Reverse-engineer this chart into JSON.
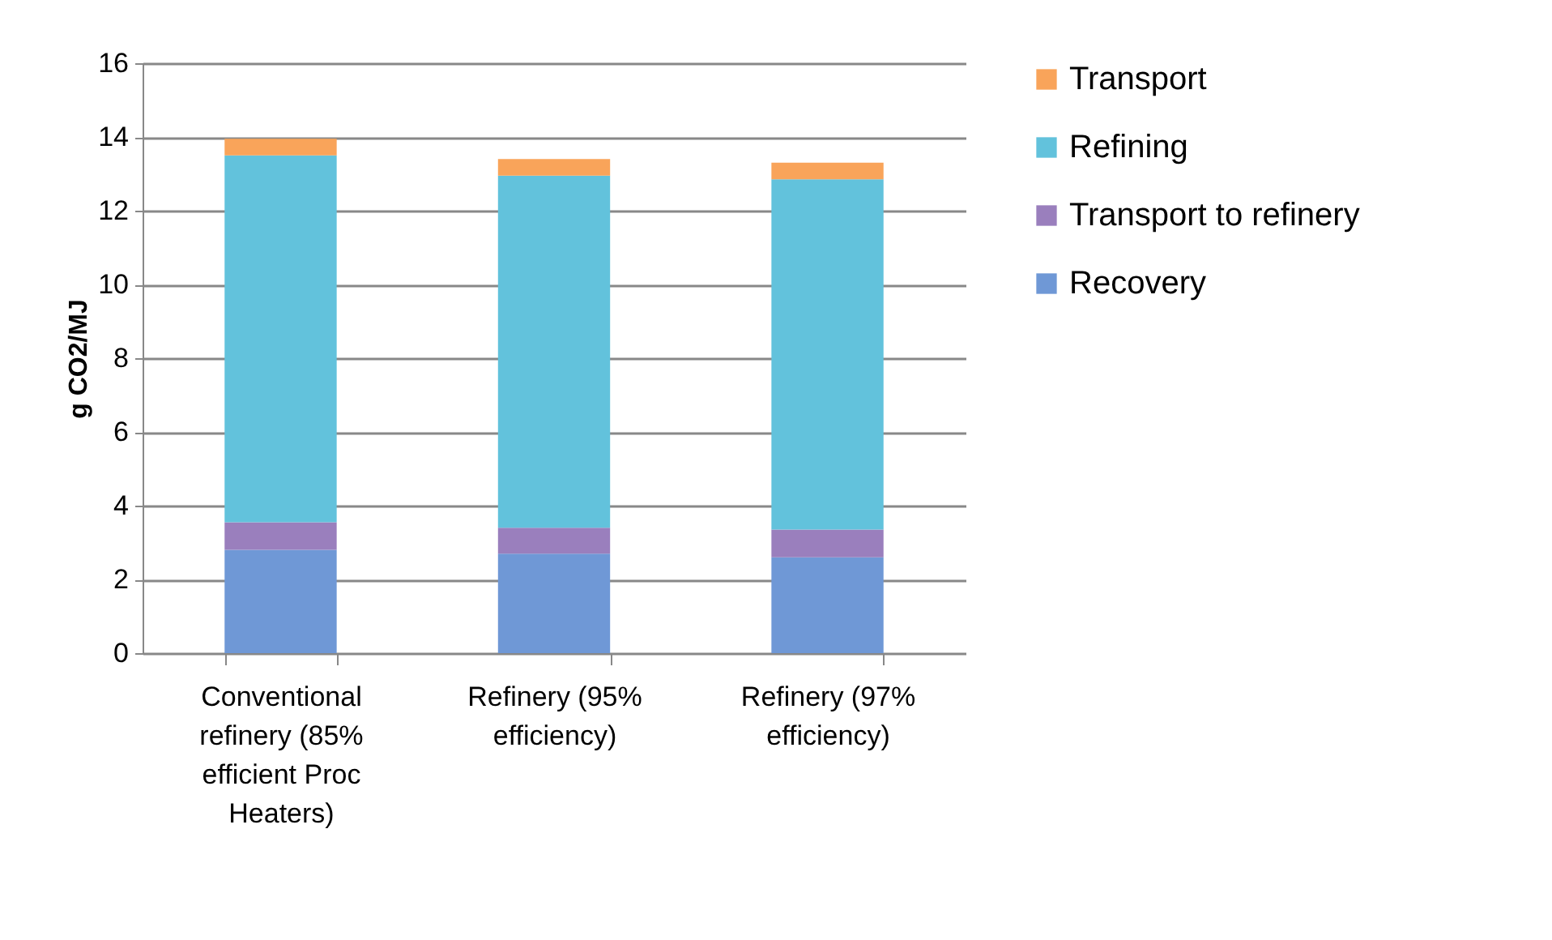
{
  "chart_data": {
    "type": "bar",
    "stacked": true,
    "ylabel": "g CO2/MJ",
    "categories": [
      "Conventional refinery (85% efficient Proc Heaters)",
      "Refinery (95% efficiency)",
      "Refinery (97% efficiency)"
    ],
    "series": [
      {
        "name": "Recovery",
        "color": "#6f98d6",
        "values": [
          2.8,
          2.7,
          2.6
        ]
      },
      {
        "name": "Transport to refinery",
        "color": "#9a7fbd",
        "values": [
          0.75,
          0.7,
          0.75
        ]
      },
      {
        "name": "Refining",
        "color": "#62c2dc",
        "values": [
          9.95,
          9.55,
          9.5
        ]
      },
      {
        "name": "Transport",
        "color": "#f9a45a",
        "values": [
          0.45,
          0.45,
          0.45
        ]
      }
    ],
    "ylim": [
      0,
      16
    ],
    "yticks": [
      0,
      2,
      4,
      6,
      8,
      10,
      12,
      14,
      16
    ],
    "grid": "y",
    "legend": "right"
  }
}
